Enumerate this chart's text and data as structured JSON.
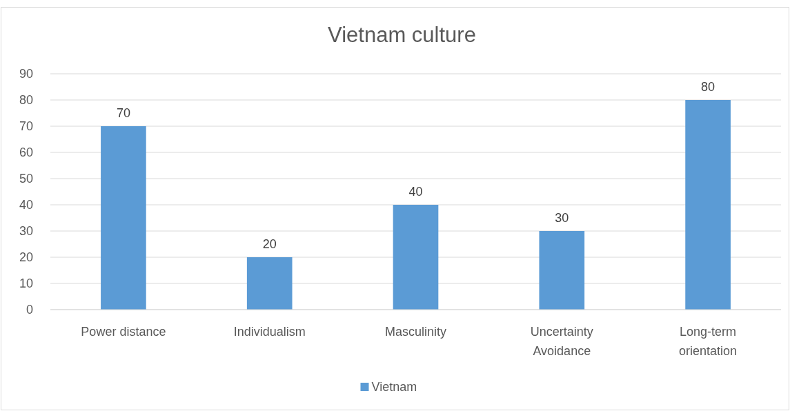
{
  "chart_data": {
    "type": "bar",
    "title": "Vietnam culture",
    "categories": [
      "Power distance",
      "Individualism",
      "Masculinity",
      "Uncertainty Avoidance",
      "Long-term orientation"
    ],
    "series": [
      {
        "name": "Vietnam",
        "color": "#5b9bd5",
        "values": [
          70,
          20,
          40,
          30,
          80
        ]
      }
    ],
    "ylim": [
      0,
      90
    ],
    "yticks": [
      0,
      10,
      20,
      30,
      40,
      50,
      60,
      70,
      80,
      90
    ],
    "grid": "y",
    "legend": "bottom",
    "data_labels": true
  }
}
